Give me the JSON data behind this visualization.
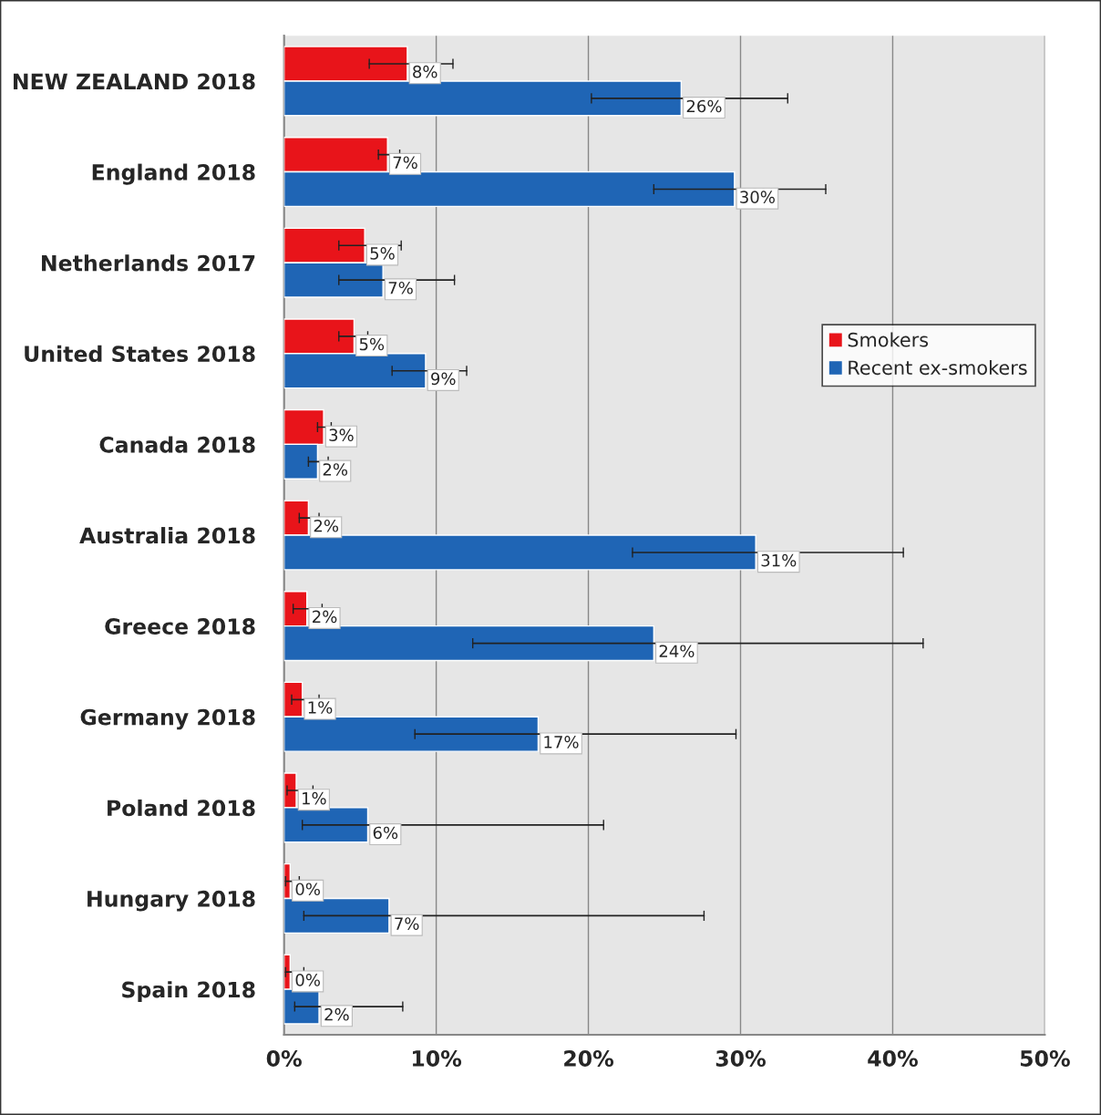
{
  "chart_data": {
    "type": "bar",
    "orientation": "horizontal",
    "categories": [
      "NEW ZEALAND 2018",
      "England 2018",
      "Netherlands 2017",
      "United States 2018",
      "Canada 2018",
      "Australia 2018",
      "Greece 2018",
      "Germany 2018",
      "Poland 2018",
      "Hungary 2018",
      "Spain 2018"
    ],
    "series": [
      {
        "name": "Smokers",
        "color": "#e8141a",
        "values": [
          8.1,
          6.8,
          5.3,
          4.6,
          2.6,
          1.6,
          1.5,
          1.2,
          0.8,
          0.4,
          0.4
        ],
        "errors": [
          [
            5.6,
            11.1
          ],
          [
            6.2,
            7.6
          ],
          [
            3.6,
            7.7
          ],
          [
            3.6,
            5.5
          ],
          [
            2.2,
            3.1
          ],
          [
            1.0,
            2.3
          ],
          [
            0.6,
            2.5
          ],
          [
            0.5,
            2.3
          ],
          [
            0.2,
            1.9
          ],
          [
            0.1,
            1.0
          ],
          [
            0.1,
            1.3
          ]
        ],
        "value_labels": [
          "8%",
          "7%",
          "5%",
          "5%",
          "3%",
          "2%",
          "2%",
          "1%",
          "1%",
          "0%",
          "0%"
        ]
      },
      {
        "name": "Recent ex-smokers",
        "color": "#1f65b5",
        "values": [
          26.1,
          29.6,
          6.5,
          9.3,
          2.2,
          31.0,
          24.3,
          16.7,
          5.5,
          6.9,
          2.3
        ],
        "errors": [
          [
            20.2,
            33.1
          ],
          [
            24.3,
            35.6
          ],
          [
            3.6,
            11.2
          ],
          [
            7.1,
            12.0
          ],
          [
            1.6,
            2.9
          ],
          [
            22.9,
            40.7
          ],
          [
            12.4,
            42.0
          ],
          [
            8.6,
            29.7
          ],
          [
            1.2,
            21.0
          ],
          [
            1.3,
            27.6
          ],
          [
            0.7,
            7.8
          ]
        ],
        "value_labels": [
          "26%",
          "30%",
          "7%",
          "9%",
          "2%",
          "31%",
          "24%",
          "17%",
          "6%",
          "7%",
          "2%"
        ]
      }
    ],
    "xlim": [
      0,
      50
    ],
    "xticks": [
      {
        "value": 0,
        "label": "0%"
      },
      {
        "value": 10,
        "label": "10%"
      },
      {
        "value": 20,
        "label": "20%"
      },
      {
        "value": 30,
        "label": "30%"
      },
      {
        "value": 40,
        "label": "40%"
      },
      {
        "value": 50,
        "label": "50%"
      }
    ],
    "grid": "x",
    "legend": "right"
  }
}
